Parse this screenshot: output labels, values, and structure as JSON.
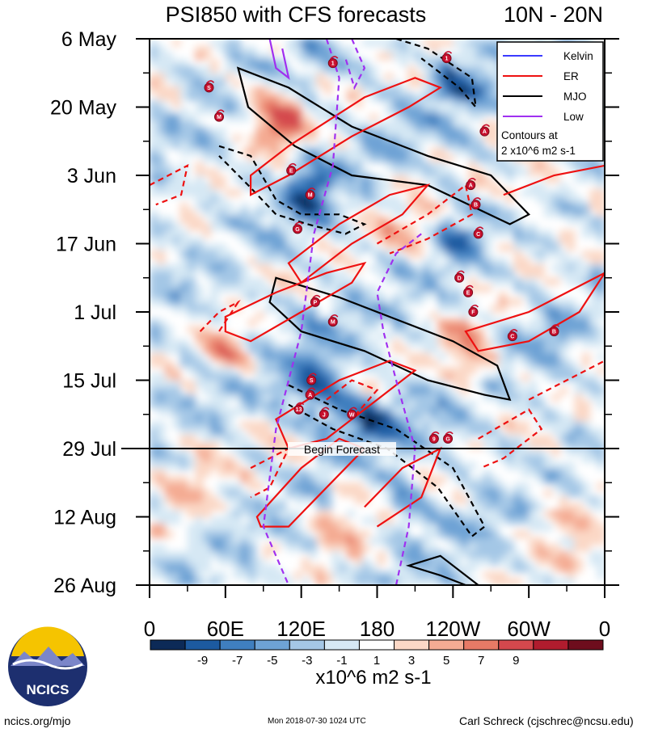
{
  "chart_data": {
    "type": "heatmap",
    "title": "PSI850 with CFS forecasts",
    "region": "10N - 20N",
    "y_axis": {
      "labels": [
        "6 May",
        "20 May",
        "3 Jun",
        "17 Jun",
        "1 Jul",
        "15 Jul",
        "29 Jul",
        "12 Aug",
        "26 Aug"
      ],
      "range_days": [
        0,
        112
      ]
    },
    "x_axis": {
      "labels": [
        "0",
        "60E",
        "120E",
        "180",
        "120W",
        "60W",
        "0"
      ],
      "range_lon": [
        0,
        360
      ]
    },
    "colorbar": {
      "ticks": [
        "-9",
        "-7",
        "-5",
        "-3",
        "-1",
        "1",
        "3",
        "5",
        "7",
        "9"
      ],
      "colors": [
        "#0c2a57",
        "#1c5aa0",
        "#3f7fbf",
        "#6ea3d5",
        "#a4c7e6",
        "#d6e8f4",
        "#ffffff",
        "#fbd8c6",
        "#f4ab93",
        "#e77a66",
        "#d4484d",
        "#b01c2e",
        "#6e0d1d"
      ],
      "units": "x10^6 m2 s-1"
    },
    "legend": {
      "entries": [
        {
          "label": "Kelvin",
          "color": "#3b3bff",
          "style": "solid"
        },
        {
          "label": "ER",
          "color": "#ee1111",
          "style": "solid"
        },
        {
          "label": "MJO",
          "color": "#000000",
          "style": "solid"
        },
        {
          "label": "Low",
          "color": "#a030f0",
          "style": "solid"
        }
      ],
      "note_line1": "Contours at",
      "note_line2": "2 x10^6 m2 s-1",
      "placement": "top-right"
    },
    "forecast": {
      "label": "Begin Forecast",
      "day": 84
    },
    "cyclones": [
      {
        "label": "S",
        "lon": 47,
        "day": 10
      },
      {
        "label": "M",
        "lon": 55,
        "day": 16
      },
      {
        "label": "1",
        "lon": 235,
        "day": 4
      },
      {
        "label": "A",
        "lon": 265,
        "day": 19
      },
      {
        "label": "E",
        "lon": 112,
        "day": 27
      },
      {
        "label": "M",
        "lon": 127,
        "day": 32
      },
      {
        "label": "A",
        "lon": 254,
        "day": 30
      },
      {
        "label": "B",
        "lon": 258,
        "day": 34
      },
      {
        "label": "G",
        "lon": 117,
        "day": 39
      },
      {
        "label": "C",
        "lon": 260,
        "day": 40
      },
      {
        "label": "D",
        "lon": 245,
        "day": 49
      },
      {
        "label": "E",
        "lon": 252,
        "day": 52
      },
      {
        "label": "F",
        "lon": 256,
        "day": 56
      },
      {
        "label": "P",
        "lon": 131,
        "day": 54
      },
      {
        "label": "M",
        "lon": 145,
        "day": 58
      },
      {
        "label": "C",
        "lon": 287,
        "day": 61
      },
      {
        "label": "B",
        "lon": 320,
        "day": 60
      },
      {
        "label": "S",
        "lon": 128,
        "day": 70
      },
      {
        "label": "A",
        "lon": 127,
        "day": 73
      },
      {
        "label": "13",
        "lon": 118,
        "day": 76
      },
      {
        "label": "J",
        "lon": 138,
        "day": 77
      },
      {
        "label": "W",
        "lon": 160,
        "day": 77
      },
      {
        "label": "9",
        "lon": 225,
        "day": 82
      },
      {
        "label": "G",
        "lon": 236,
        "day": 82
      },
      {
        "label": "1",
        "lon": 145,
        "day": 5
      }
    ]
  },
  "footer": {
    "logo_text": "NCICS",
    "url": "ncics.org/mjo",
    "timestamp": "Mon 2018-07-30 1024 UTC",
    "author": "Carl Schreck (cjschrec@ncsu.edu)"
  }
}
